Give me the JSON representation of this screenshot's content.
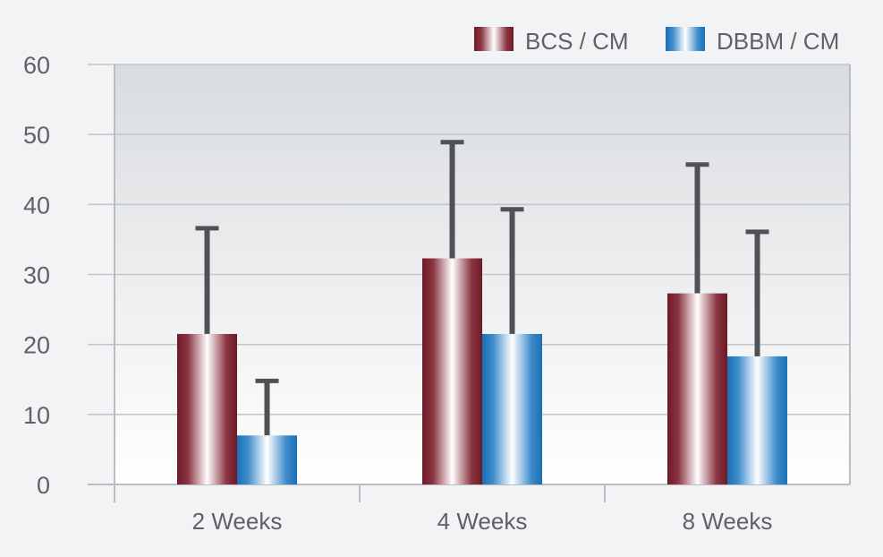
{
  "chart_data": {
    "type": "bar",
    "title": "",
    "xlabel": "",
    "ylabel": "",
    "categories": [
      "2 Weeks",
      "4 Weeks",
      "8 Weeks"
    ],
    "ylim": [
      0,
      60
    ],
    "yticks": [
      0,
      10,
      20,
      30,
      40,
      50,
      60
    ],
    "grid": true,
    "legend_position": "top-right",
    "error_bars": "upper",
    "series": [
      {
        "name": "BCS / CM",
        "values": [
          21.5,
          32.3,
          27.3
        ],
        "errors": [
          15.1,
          16.6,
          18.4
        ],
        "color": "#7c1f2c"
      },
      {
        "name": "DBBM / CM",
        "values": [
          7.0,
          21.5,
          18.3
        ],
        "errors": [
          7.8,
          17.8,
          17.8
        ],
        "color": "#1f77c0"
      }
    ],
    "colors": {
      "plot_top": "#d9dcdf",
      "plot_bottom": "#ffffff",
      "gridline": "#c3c6ca",
      "axis": "#b9bcc0",
      "error_bar": "#4f5155",
      "text": "#5f6167"
    }
  }
}
